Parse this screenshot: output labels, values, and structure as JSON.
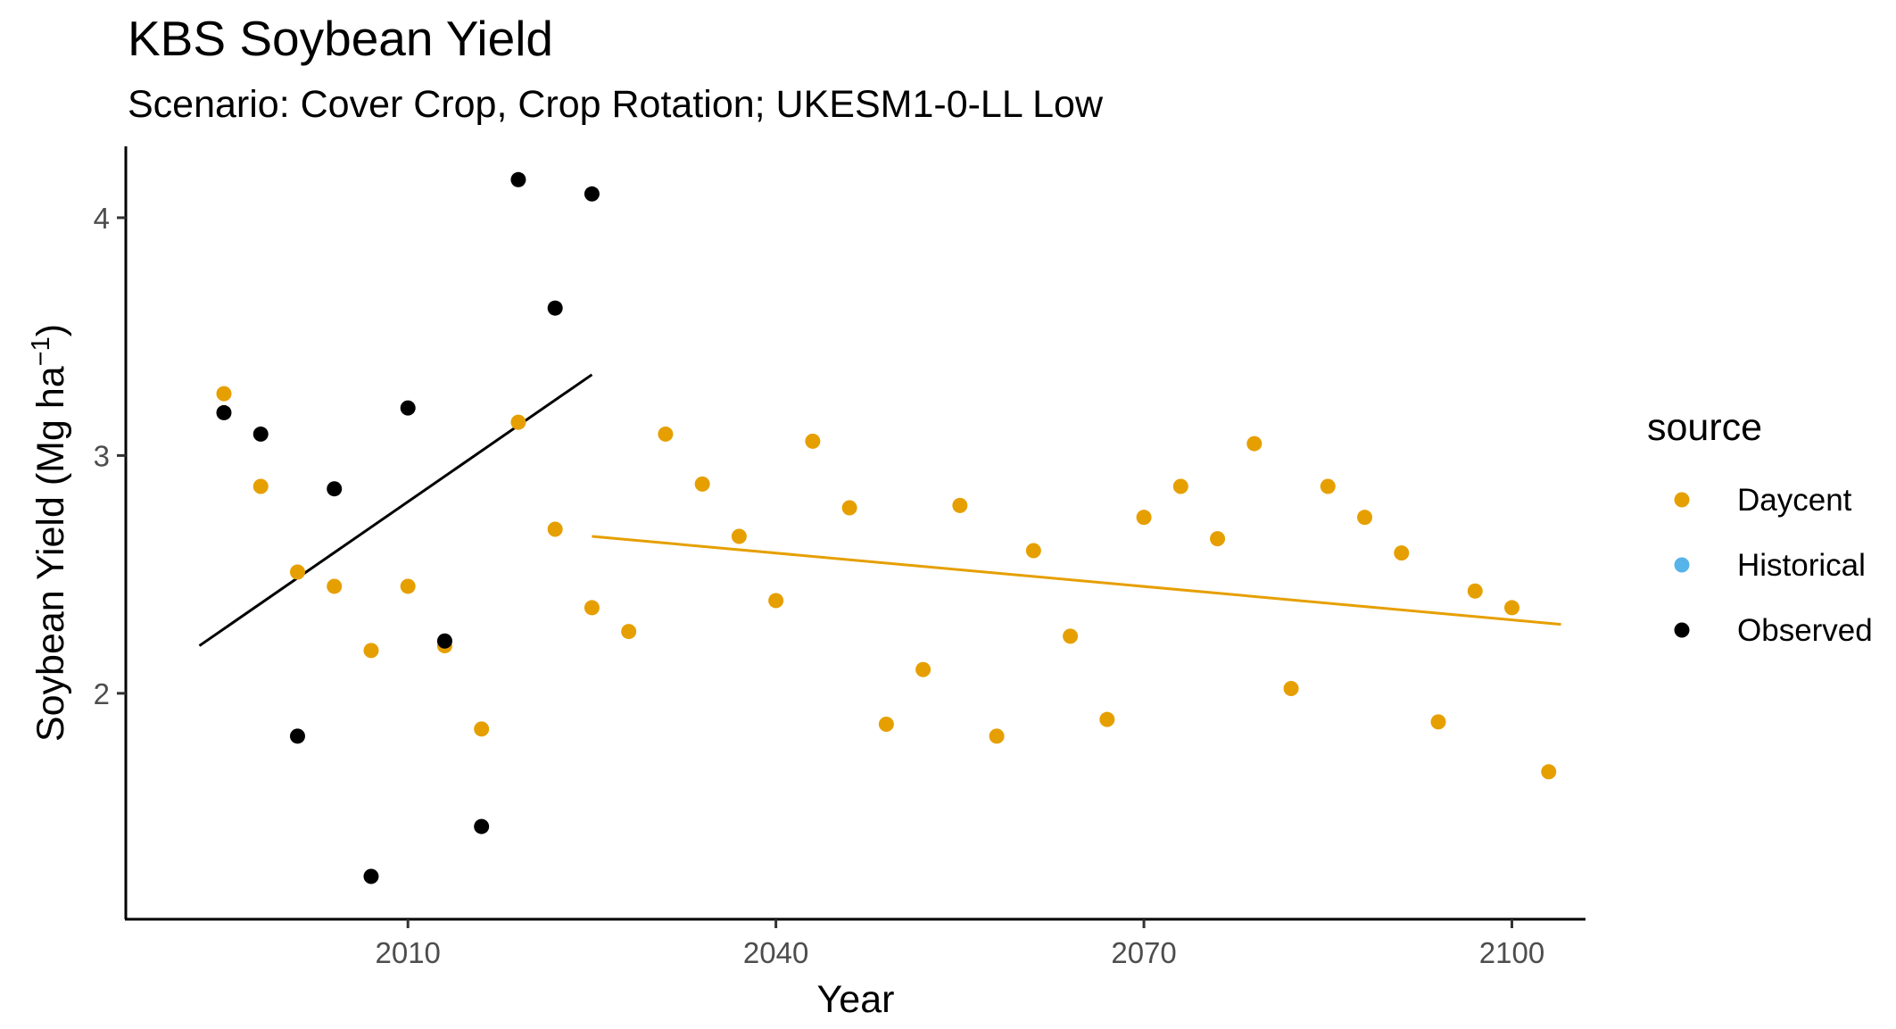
{
  "chart_data": {
    "type": "scatter",
    "title": "KBS Soybean Yield",
    "subtitle": "Scenario: Cover Crop, Crop Rotation; UKESM1-0-LL Low",
    "xlabel": "Year",
    "ylabel": "Soybean Yield (Mg ha",
    "ylabel_superscript": "−1",
    "ylabel_close": ")",
    "xlim": [
      1987,
      2106
    ],
    "ylim": [
      1.05,
      4.3
    ],
    "x_ticks": [
      2010,
      2040,
      2070,
      2100
    ],
    "y_ticks": [
      2,
      3,
      4
    ],
    "grid": false,
    "legend": {
      "title": "source",
      "position": "right",
      "entries": [
        {
          "label": "Daycent",
          "color": "#E69F00"
        },
        {
          "label": "Historical",
          "color": "#56B4E9"
        },
        {
          "label": "Observed",
          "color": "#000000"
        }
      ]
    },
    "series": [
      {
        "name": "Daycent",
        "color": "#E69F00",
        "points": [
          [
            1995,
            3.26
          ],
          [
            1998,
            2.87
          ],
          [
            2001,
            2.51
          ],
          [
            2004,
            2.45
          ],
          [
            2007,
            2.18
          ],
          [
            2010,
            2.45
          ],
          [
            2013,
            2.2
          ],
          [
            2016,
            1.85
          ],
          [
            2019,
            3.14
          ],
          [
            2022,
            2.69
          ],
          [
            2025,
            2.36
          ],
          [
            2028,
            2.26
          ],
          [
            2031,
            3.09
          ],
          [
            2034,
            2.88
          ],
          [
            2037,
            2.66
          ],
          [
            2040,
            2.39
          ],
          [
            2043,
            3.06
          ],
          [
            2046,
            2.78
          ],
          [
            2049,
            1.87
          ],
          [
            2052,
            2.1
          ],
          [
            2055,
            2.79
          ],
          [
            2058,
            1.82
          ],
          [
            2061,
            2.6
          ],
          [
            2064,
            2.24
          ],
          [
            2067,
            1.89
          ],
          [
            2070,
            2.74
          ],
          [
            2073,
            2.87
          ],
          [
            2076,
            2.65
          ],
          [
            2079,
            3.05
          ],
          [
            2082,
            2.02
          ],
          [
            2085,
            2.87
          ],
          [
            2088,
            2.74
          ],
          [
            2091,
            2.59
          ],
          [
            2094,
            1.88
          ],
          [
            2097,
            2.43
          ],
          [
            2100,
            2.36
          ],
          [
            2103,
            1.67
          ]
        ],
        "trend": [
          [
            2025,
            2.66
          ],
          [
            2104,
            2.29
          ]
        ]
      },
      {
        "name": "Observed",
        "color": "#000000",
        "points": [
          [
            1995,
            3.18
          ],
          [
            1998,
            3.09
          ],
          [
            2001,
            1.82
          ],
          [
            2004,
            2.86
          ],
          [
            2007,
            1.23
          ],
          [
            2010,
            3.2
          ],
          [
            2013,
            2.22
          ],
          [
            2016,
            1.44
          ],
          [
            2019,
            4.16
          ],
          [
            2022,
            3.62
          ],
          [
            2025,
            4.1
          ]
        ],
        "trend": [
          [
            1993,
            2.2
          ],
          [
            2025,
            3.34
          ]
        ]
      }
    ]
  }
}
